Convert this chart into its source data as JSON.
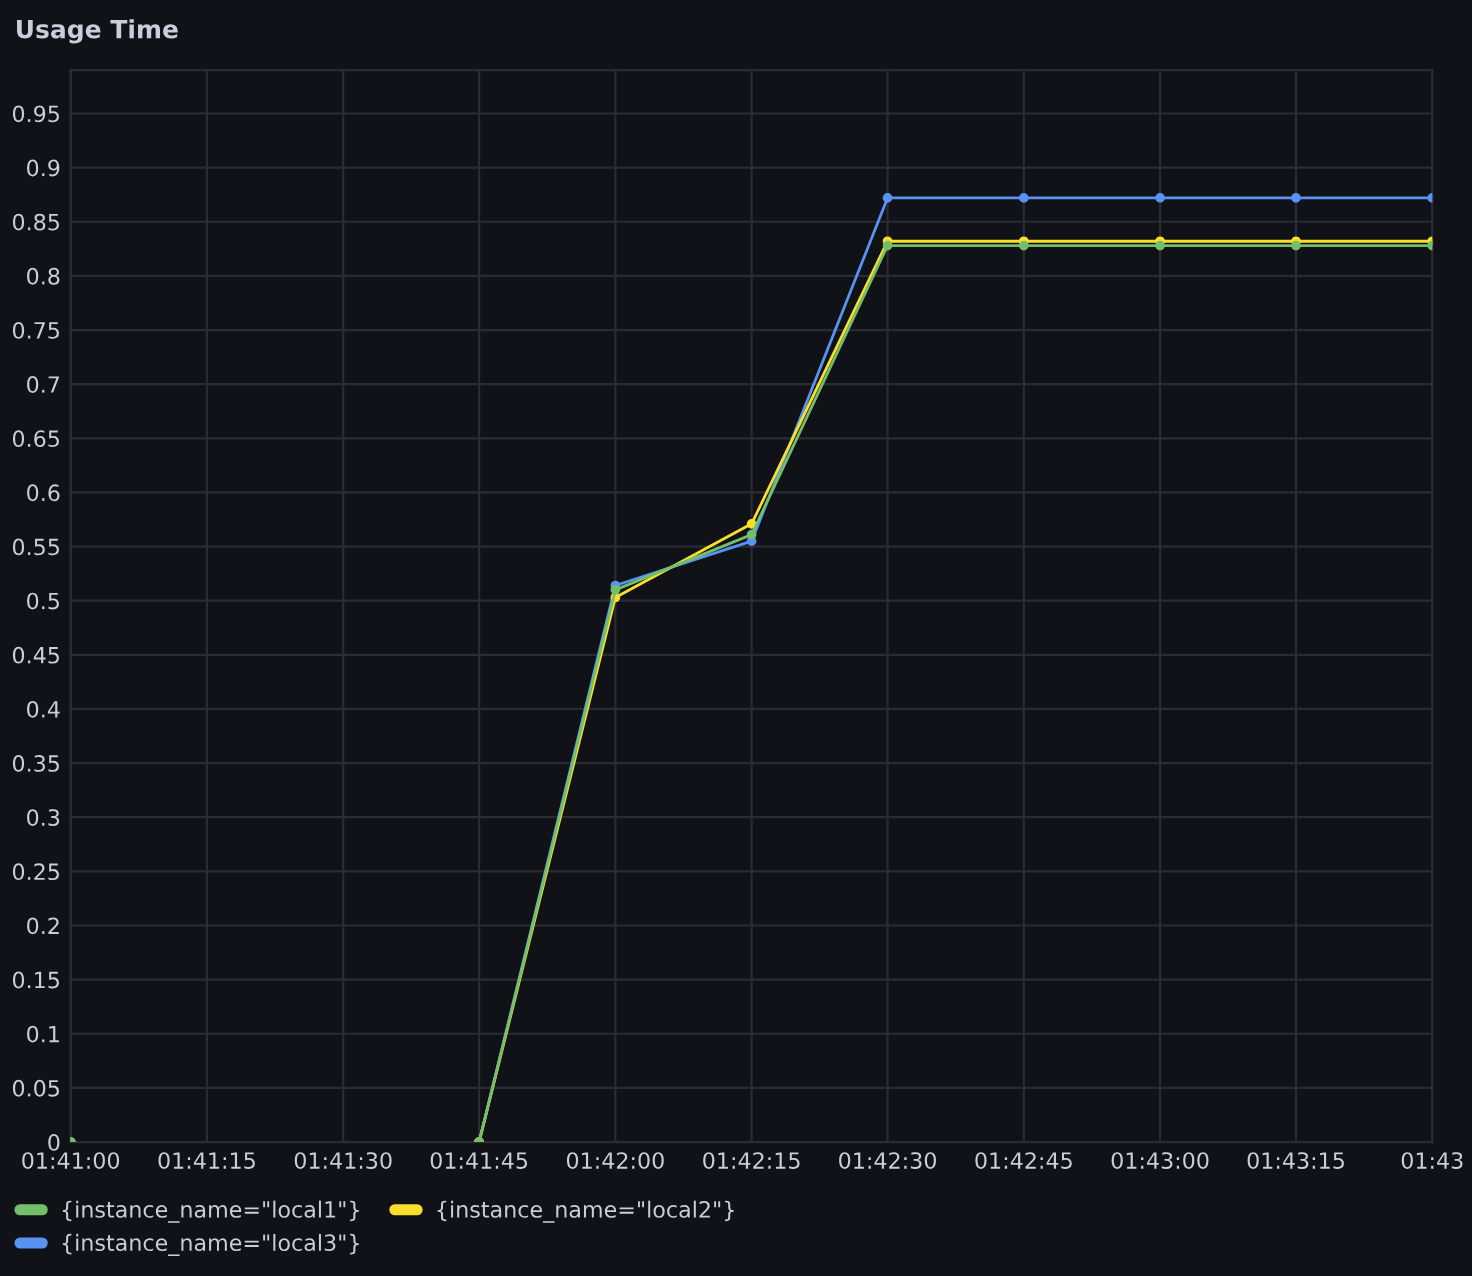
{
  "chart_data": {
    "type": "line",
    "title": "Usage Time",
    "x": [
      1.68333,
      1.6875,
      1.69167,
      1.69583,
      1.7,
      1.70417,
      1.70833,
      1.7125,
      1.71667,
      1.72083,
      1.725
    ],
    "series": [
      {
        "name": "{instance_name=\"local1\"}",
        "color": "#73bf69",
        "values": [
          0,
          null,
          null,
          0,
          0.51,
          0.561,
          0.828,
          0.828,
          0.828,
          0.828,
          0.828
        ]
      },
      {
        "name": "{instance_name=\"local2\"}",
        "color": "#fade2a",
        "values": [
          0,
          null,
          null,
          0,
          0.503,
          0.571,
          0.832,
          0.832,
          0.832,
          0.832,
          0.832
        ]
      },
      {
        "name": "{instance_name=\"local3\"}",
        "color": "#5794f2",
        "values": [
          0,
          null,
          null,
          0,
          0.514,
          0.555,
          0.872,
          0.872,
          0.872,
          0.872,
          0.872
        ]
      }
    ],
    "xlim": [
      1.68333,
      1.725
    ],
    "xticks": [
      {
        "value": 1.68333,
        "label": "01:41:00"
      },
      {
        "value": 1.6875,
        "label": "01:41:15"
      },
      {
        "value": 1.69167,
        "label": "01:41:30"
      },
      {
        "value": 1.69583,
        "label": "01:41:45"
      },
      {
        "value": 1.7,
        "label": "01:42:00"
      },
      {
        "value": 1.70417,
        "label": "01:42:15"
      },
      {
        "value": 1.70833,
        "label": "01:42:30"
      },
      {
        "value": 1.7125,
        "label": "01:42:45"
      },
      {
        "value": 1.71667,
        "label": "01:43:00"
      },
      {
        "value": 1.72083,
        "label": "01:43:15"
      },
      {
        "value": 1.725,
        "label": "01:43"
      }
    ],
    "ylim": [
      0,
      0.99
    ],
    "yticks": [
      0,
      0.05,
      0.1,
      0.15,
      0.2,
      0.25,
      0.3,
      0.35,
      0.4,
      0.45,
      0.5,
      0.55,
      0.6,
      0.65,
      0.7,
      0.75,
      0.8,
      0.85,
      0.9,
      0.95
    ],
    "grid": true,
    "legend": "bottom left",
    "marker": "circle",
    "line_style": "solid"
  }
}
